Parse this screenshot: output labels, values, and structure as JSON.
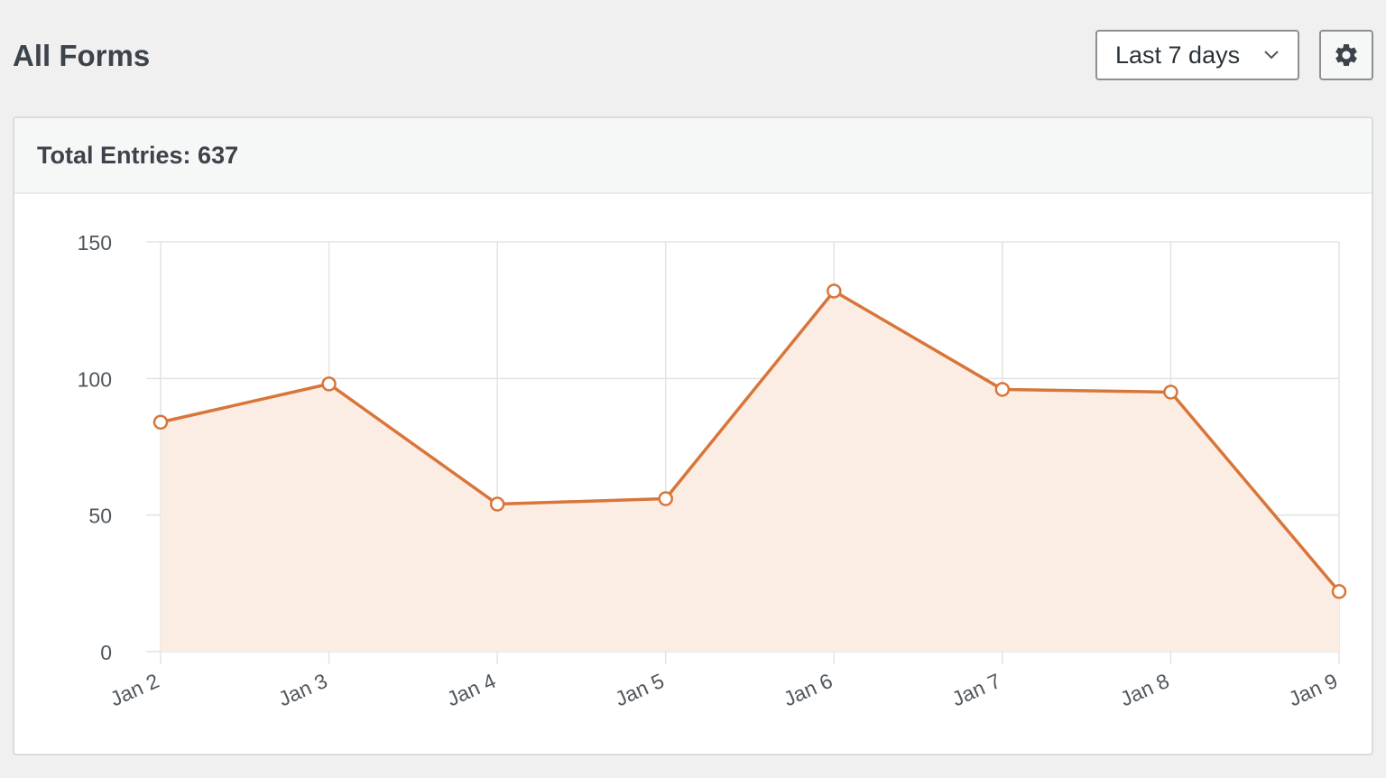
{
  "header": {
    "title": "All Forms",
    "range_select": {
      "selected": "Last 7 days"
    },
    "settings_icon": "gear-icon"
  },
  "card": {
    "total_label": "Total Entries:",
    "total_value": "637"
  },
  "colors": {
    "line": "#d8763a",
    "fill": "#fcede4",
    "grid": "#e3e3e3",
    "point_fill": "#ffffff"
  },
  "chart_data": {
    "type": "area",
    "categories": [
      "Jan 2",
      "Jan 3",
      "Jan 4",
      "Jan 5",
      "Jan 6",
      "Jan 7",
      "Jan 8",
      "Jan 9"
    ],
    "series": [
      {
        "values": [
          84,
          98,
          54,
          56,
          132,
          96,
          95,
          22
        ]
      }
    ],
    "y_ticks": [
      0,
      50,
      100,
      150
    ],
    "ylim": [
      0,
      150
    ],
    "grid": true,
    "title": "",
    "xlabel": "",
    "ylabel": ""
  }
}
